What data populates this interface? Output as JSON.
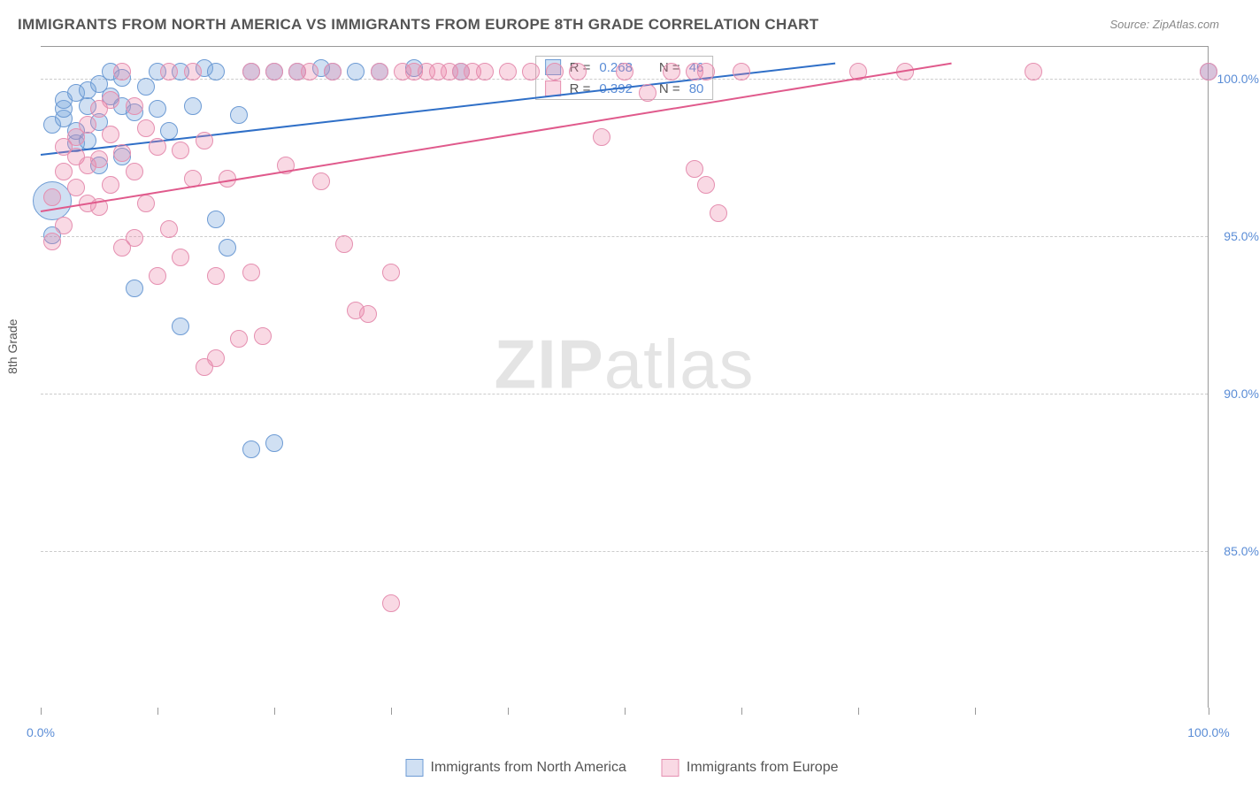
{
  "title": "IMMIGRANTS FROM NORTH AMERICA VS IMMIGRANTS FROM EUROPE 8TH GRADE CORRELATION CHART",
  "source": "Source: ZipAtlas.com",
  "watermark_zip": "ZIP",
  "watermark_atlas": "atlas",
  "ylabel": "8th Grade",
  "chart": {
    "type": "scatter",
    "xlim": [
      0,
      100
    ],
    "ylim": [
      80,
      101
    ],
    "yticks": [
      85.0,
      90.0,
      95.0,
      100.0
    ],
    "ytick_labels": [
      "85.0%",
      "90.0%",
      "95.0%",
      "100.0%"
    ],
    "xticks": [
      0,
      10,
      20,
      30,
      40,
      50,
      60,
      70,
      80,
      100
    ],
    "xtick_labels_shown": {
      "0": "0.0%",
      "100": "100.0%"
    },
    "background_color": "#ffffff",
    "grid_color": "#cccccc",
    "tick_label_color": "#5b8dd6",
    "series": [
      {
        "name": "Immigrants from North America",
        "fill_color": "rgba(120,165,220,0.35)",
        "stroke_color": "#6d9bd4",
        "marker_radius": 10,
        "R": 0.268,
        "N": 46,
        "trend": {
          "x0": 0,
          "y0": 97.6,
          "x1": 68,
          "y1": 100.5,
          "color": "#2f6fc7",
          "width": 2
        },
        "points": [
          [
            1,
            95.0
          ],
          [
            1,
            96.1,
            22
          ],
          [
            1,
            98.5
          ],
          [
            2,
            98.7
          ],
          [
            2,
            99.0
          ],
          [
            2,
            99.3
          ],
          [
            3,
            97.9
          ],
          [
            3,
            98.3
          ],
          [
            3,
            99.5
          ],
          [
            4,
            98.0
          ],
          [
            4,
            99.1
          ],
          [
            4,
            99.6
          ],
          [
            5,
            97.2
          ],
          [
            5,
            98.6
          ],
          [
            5,
            99.8
          ],
          [
            6,
            99.4
          ],
          [
            6,
            100.2
          ],
          [
            7,
            97.5
          ],
          [
            7,
            99.1
          ],
          [
            7,
            100.0
          ],
          [
            8,
            93.3
          ],
          [
            8,
            98.9
          ],
          [
            9,
            99.7
          ],
          [
            10,
            100.2
          ],
          [
            10,
            99.0
          ],
          [
            11,
            98.3
          ],
          [
            12,
            92.1
          ],
          [
            12,
            100.2
          ],
          [
            13,
            99.1
          ],
          [
            14,
            100.3
          ],
          [
            15,
            95.5
          ],
          [
            15,
            100.2
          ],
          [
            16,
            94.6
          ],
          [
            17,
            98.8
          ],
          [
            18,
            100.2
          ],
          [
            18,
            88.2
          ],
          [
            20,
            88.4
          ],
          [
            20,
            100.2
          ],
          [
            22,
            100.2
          ],
          [
            24,
            100.3
          ],
          [
            25,
            100.2
          ],
          [
            27,
            100.2
          ],
          [
            29,
            100.2
          ],
          [
            32,
            100.3
          ],
          [
            36,
            100.2
          ],
          [
            100,
            100.2
          ]
        ]
      },
      {
        "name": "Immigrants from Europe",
        "fill_color": "rgba(235,130,165,0.30)",
        "stroke_color": "#e58fb0",
        "marker_radius": 10,
        "R": 0.392,
        "N": 80,
        "trend": {
          "x0": 0,
          "y0": 95.8,
          "x1": 78,
          "y1": 100.5,
          "color": "#e05a8c",
          "width": 2
        },
        "points": [
          [
            1,
            94.8
          ],
          [
            1,
            96.2
          ],
          [
            2,
            95.3
          ],
          [
            2,
            97.0
          ],
          [
            2,
            97.8
          ],
          [
            3,
            96.5
          ],
          [
            3,
            97.5
          ],
          [
            3,
            98.1
          ],
          [
            4,
            96.0
          ],
          [
            4,
            97.2
          ],
          [
            4,
            98.5
          ],
          [
            5,
            95.9
          ],
          [
            5,
            97.4
          ],
          [
            5,
            99.0
          ],
          [
            6,
            96.6
          ],
          [
            6,
            98.2
          ],
          [
            6,
            99.3
          ],
          [
            7,
            94.6
          ],
          [
            7,
            97.6
          ],
          [
            7,
            100.2
          ],
          [
            8,
            94.9
          ],
          [
            8,
            97.0
          ],
          [
            8,
            99.1
          ],
          [
            9,
            96.0
          ],
          [
            9,
            98.4
          ],
          [
            10,
            93.7
          ],
          [
            10,
            97.8
          ],
          [
            11,
            95.2
          ],
          [
            11,
            100.2
          ],
          [
            12,
            94.3
          ],
          [
            12,
            97.7
          ],
          [
            13,
            96.8
          ],
          [
            13,
            100.2
          ],
          [
            14,
            90.8
          ],
          [
            14,
            98.0
          ],
          [
            15,
            93.7
          ],
          [
            15,
            91.1
          ],
          [
            16,
            96.8
          ],
          [
            17,
            91.7
          ],
          [
            18,
            100.2
          ],
          [
            18,
            93.8
          ],
          [
            19,
            91.8
          ],
          [
            20,
            100.2
          ],
          [
            21,
            97.2
          ],
          [
            22,
            100.2
          ],
          [
            23,
            100.2
          ],
          [
            24,
            96.7
          ],
          [
            25,
            100.2
          ],
          [
            26,
            94.7
          ],
          [
            27,
            92.6
          ],
          [
            28,
            92.5
          ],
          [
            29,
            100.2
          ],
          [
            30,
            83.3
          ],
          [
            30,
            93.8
          ],
          [
            31,
            100.2
          ],
          [
            32,
            100.2
          ],
          [
            33,
            100.2
          ],
          [
            34,
            100.2
          ],
          [
            35,
            100.2
          ],
          [
            36,
            100.2
          ],
          [
            37,
            100.2
          ],
          [
            38,
            100.2
          ],
          [
            40,
            100.2
          ],
          [
            42,
            100.2
          ],
          [
            44,
            100.2
          ],
          [
            46,
            100.2
          ],
          [
            48,
            98.1
          ],
          [
            50,
            100.2
          ],
          [
            52,
            99.5
          ],
          [
            54,
            100.2
          ],
          [
            56,
            97.1
          ],
          [
            56,
            100.2
          ],
          [
            57,
            96.6
          ],
          [
            57,
            100.2
          ],
          [
            58,
            95.7
          ],
          [
            60,
            100.2
          ],
          [
            70,
            100.2
          ],
          [
            74,
            100.2
          ],
          [
            85,
            100.2
          ],
          [
            100,
            100.2
          ]
        ]
      }
    ]
  },
  "stats_labels": {
    "R_prefix": "R = ",
    "N_prefix": "N = "
  },
  "legend": [
    {
      "swatch_fill": "rgba(120,165,220,0.35)",
      "swatch_border": "#6d9bd4",
      "label": "Immigrants from North America"
    },
    {
      "swatch_fill": "rgba(235,130,165,0.30)",
      "swatch_border": "#e58fb0",
      "label": "Immigrants from Europe"
    }
  ]
}
